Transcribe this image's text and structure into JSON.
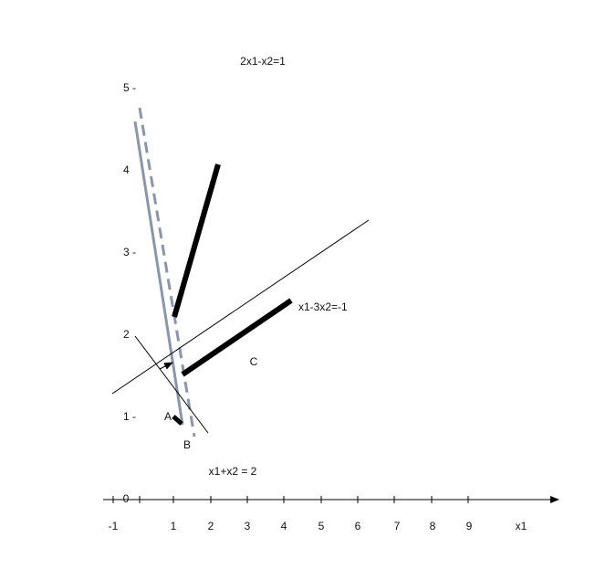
{
  "labels": {
    "eq1": "2x1-x2=1",
    "eq2": "x1-3x2=-1",
    "eq3": "x1+x2 = 2",
    "a": "A",
    "b": "B",
    "c": "C"
  },
  "y_axis_labels": [
    "5 -",
    "4",
    "3 -",
    "2",
    "1 -"
  ],
  "x_axis_labels": [
    "-1",
    "1",
    "2",
    "3",
    "4",
    "5",
    "6",
    "7",
    "8",
    "9",
    "x1"
  ],
  "origin": "0"
}
